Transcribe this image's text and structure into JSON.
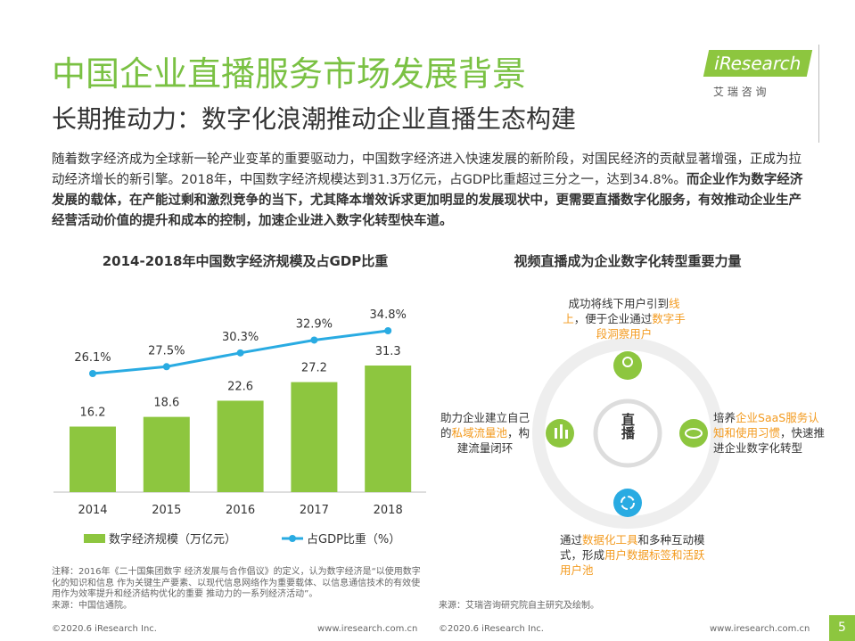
{
  "header": {
    "title": "中国企业直播服务市场发展背景",
    "subtitle": "长期推动力：数字化浪潮推动企业直播生态构建",
    "logo": "iResearch",
    "logo_cn": "艾 瑞 咨 询"
  },
  "intro": {
    "normal": "随着数字经济成为全球新一轮产业变革的重要驱动力，中国数字经济进入快速发展的新阶段，对国民经济的贡献显著增强，正成为拉动经济增长的新引擎。2018年，中国数字经济规模达到31.3万亿元，占GDP比重超过三分之一，达到34.8%。",
    "bold": "而企业作为数字经济发展的载体，在产能过剩和激烈竞争的当下，尤其降本增效诉求更加明显的发展现状中，更需要直播数字化服务，有效推动企业生产经营活动价值的提升和成本的控制，加速企业进入数字化转型快车道。"
  },
  "chart_data": {
    "type": "bar_line",
    "title": "2014-2018年中国数字经济规模及占GDP比重",
    "categories": [
      "2014",
      "2015",
      "2016",
      "2017",
      "2018"
    ],
    "series": [
      {
        "name": "数字经济规模（万亿元）",
        "type": "bar",
        "color": "#8dc63f",
        "values": [
          16.2,
          18.6,
          22.6,
          27.2,
          31.3
        ]
      },
      {
        "name": "占GDP比重（%）",
        "type": "line",
        "color": "#29abe2",
        "values": [
          26.1,
          27.5,
          30.3,
          32.9,
          34.8
        ],
        "value_labels": [
          "26.1%",
          "27.5%",
          "30.3%",
          "32.9%",
          "34.8%"
        ]
      }
    ]
  },
  "note": {
    "text": "注释：2016年《二十国集团数字 经济发展与合作倡议》的定义，认为数字经济是“以使用数字化的知识和信息 作为关键生产要素、以现代信息网络作为重要载体、以信息通信技术的有效使 用作为效率提升和经济结构优化的重要 推动力的一系列经济活动”。",
    "source": "来源：中国信通院。"
  },
  "diagram": {
    "title": "视频直播成为企业数字化转型重要力量",
    "center": "直播",
    "items": [
      {
        "parts": [
          {
            "text": "成功将线下用户引到",
            "highlight": false
          },
          {
            "text": "线上",
            "highlight": true
          },
          {
            "text": "，便于企业通过",
            "highlight": false
          },
          {
            "text": "数字手段洞察用户",
            "highlight": true
          }
        ]
      },
      {
        "parts": [
          {
            "text": "助力企业建立自己的",
            "highlight": false
          },
          {
            "text": "私域流量池",
            "highlight": true
          },
          {
            "text": "，构建流量闭环",
            "highlight": false
          }
        ]
      },
      {
        "parts": [
          {
            "text": "培养",
            "highlight": false
          },
          {
            "text": "企业SaaS服务认知和使用习惯",
            "highlight": true
          },
          {
            "text": "，快速推进企业数字化转型",
            "highlight": false
          }
        ]
      },
      {
        "parts": [
          {
            "text": "通过",
            "highlight": false
          },
          {
            "text": "数据化工具",
            "highlight": true
          },
          {
            "text": "和多种互动模式，形成",
            "highlight": false
          },
          {
            "text": "用户数据标签和活跃用户池",
            "highlight": true
          }
        ]
      }
    ],
    "source": "来源：艾瑞咨询研究院自主研究及绘制。"
  },
  "footer": {
    "copyright_left": "©2020.6 iResearch Inc.",
    "url_left": "www.iresearch.com.cn",
    "copyright_right": "©2020.6 iResearch Inc.",
    "url_right": "www.iresearch.com.cn",
    "page": "5"
  }
}
